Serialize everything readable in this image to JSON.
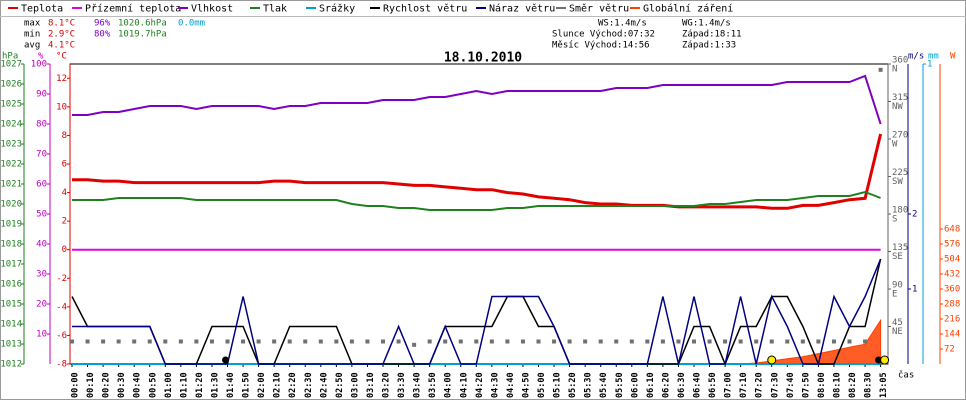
{
  "chart_data": {
    "type": "line",
    "title": "18.10.2010",
    "xlabel": "čas",
    "categories": [
      "00:00",
      "00:10",
      "00:20",
      "00:30",
      "00:40",
      "00:50",
      "01:00",
      "01:10",
      "01:20",
      "01:30",
      "01:40",
      "01:50",
      "02:00",
      "02:10",
      "02:20",
      "02:30",
      "02:40",
      "02:50",
      "03:00",
      "03:10",
      "03:20",
      "03:30",
      "03:40",
      "03:50",
      "04:00",
      "04:10",
      "04:20",
      "04:30",
      "04:40",
      "04:50",
      "05:00",
      "05:10",
      "05:20",
      "05:30",
      "05:40",
      "05:50",
      "06:00",
      "06:10",
      "06:20",
      "06:30",
      "06:40",
      "06:50",
      "07:00",
      "07:10",
      "07:20",
      "07:30",
      "07:40",
      "07:50",
      "08:00",
      "08:10",
      "08:20",
      "08:30",
      "13:05"
    ],
    "series": [
      {
        "name": "Teplota",
        "color": "#e00000",
        "type": "line",
        "axis": "y3",
        "values": [
          4.9,
          4.9,
          4.8,
          4.8,
          4.7,
          4.7,
          4.7,
          4.7,
          4.7,
          4.7,
          4.7,
          4.7,
          4.7,
          4.8,
          4.8,
          4.7,
          4.7,
          4.7,
          4.7,
          4.7,
          4.7,
          4.6,
          4.5,
          4.5,
          4.4,
          4.3,
          4.2,
          4.2,
          4.0,
          3.9,
          3.7,
          3.6,
          3.5,
          3.3,
          3.2,
          3.2,
          3.1,
          3.1,
          3.1,
          3.0,
          3.0,
          3.0,
          3.0,
          3.0,
          3.0,
          2.9,
          2.9,
          3.1,
          3.1,
          3.3,
          3.5,
          3.6,
          8.1
        ]
      },
      {
        "name": "Přízemní teplota",
        "color": "#e000e0",
        "type": "line",
        "axis": "y3",
        "values": [
          0,
          0,
          0,
          0,
          0,
          0,
          0,
          0,
          0,
          0,
          0,
          0,
          0,
          0,
          0,
          0,
          0,
          0,
          0,
          0,
          0,
          0,
          0,
          0,
          0,
          0,
          0,
          0,
          0,
          0,
          0,
          0,
          0,
          0,
          0,
          0,
          0,
          0,
          0,
          0,
          0,
          0,
          0,
          0,
          0,
          0,
          0,
          0,
          0,
          0,
          0,
          0,
          0
        ]
      },
      {
        "name": "Vlhkost",
        "color": "#8000c0",
        "type": "line",
        "axis": "y2",
        "values": [
          83,
          83,
          84,
          84,
          85,
          86,
          86,
          86,
          85,
          86,
          86,
          86,
          86,
          85,
          86,
          86,
          87,
          87,
          87,
          87,
          88,
          88,
          88,
          89,
          89,
          90,
          91,
          90,
          91,
          91,
          91,
          91,
          91,
          91,
          91,
          92,
          92,
          92,
          93,
          93,
          93,
          93,
          93,
          93,
          93,
          93,
          94,
          94,
          94,
          94,
          94,
          96,
          80
        ]
      },
      {
        "name": "Tlak",
        "color": "#208020",
        "type": "line",
        "axis": "y",
        "values": [
          1020.2,
          1020.2,
          1020.2,
          1020.3,
          1020.3,
          1020.3,
          1020.3,
          1020.3,
          1020.2,
          1020.2,
          1020.2,
          1020.2,
          1020.2,
          1020.2,
          1020.2,
          1020.2,
          1020.2,
          1020.2,
          1020.0,
          1019.9,
          1019.9,
          1019.8,
          1019.8,
          1019.7,
          1019.7,
          1019.7,
          1019.7,
          1019.7,
          1019.8,
          1019.8,
          1019.9,
          1019.9,
          1019.9,
          1019.9,
          1019.9,
          1019.9,
          1019.9,
          1019.9,
          1019.9,
          1019.9,
          1019.9,
          1020.0,
          1020.0,
          1020.1,
          1020.2,
          1020.2,
          1020.2,
          1020.3,
          1020.4,
          1020.4,
          1020.4,
          1020.6,
          1020.3
        ]
      },
      {
        "name": "Srážky",
        "color": "#00a0d0",
        "type": "line",
        "axis": "y6",
        "values": [
          0,
          0,
          0,
          0,
          0,
          0,
          0,
          0,
          0,
          0,
          0,
          0,
          0,
          0,
          0,
          0,
          0,
          0,
          0,
          0,
          0,
          0,
          0,
          0,
          0,
          0,
          0,
          0,
          0,
          0,
          0,
          0,
          0,
          0,
          0,
          0,
          0,
          0,
          0,
          0,
          0,
          0,
          0,
          0,
          0,
          0,
          0,
          0,
          0,
          0,
          0,
          0,
          0
        ]
      },
      {
        "name": "Rychlost větru",
        "color": "#000000",
        "type": "line",
        "axis": "y5",
        "values": [
          0.9,
          0.5,
          0.5,
          0.5,
          0.5,
          0.5,
          0,
          0,
          0,
          0.5,
          0.5,
          0.5,
          0,
          0,
          0.5,
          0.5,
          0.5,
          0.5,
          0,
          0,
          0,
          0,
          0,
          0,
          0.5,
          0.5,
          0.5,
          0.5,
          0.9,
          0.9,
          0.5,
          0.5,
          0,
          0,
          0,
          0,
          0,
          0,
          0,
          0,
          0.5,
          0.5,
          0,
          0.5,
          0.5,
          0.9,
          0.9,
          0.5,
          0,
          0,
          0.5,
          0.5,
          1.4
        ]
      },
      {
        "name": "Náraz větru",
        "color": "#000080",
        "type": "line",
        "axis": "y5",
        "values": [
          0.5,
          0.5,
          0.5,
          0.5,
          0.5,
          0.5,
          0,
          0,
          0,
          0,
          0,
          0.9,
          0,
          0,
          0,
          0,
          0,
          0,
          0,
          0,
          0,
          0.5,
          0,
          0,
          0.5,
          0,
          0,
          0.9,
          0.9,
          0.9,
          0.9,
          0.5,
          0,
          0,
          0,
          0,
          0,
          0,
          0.9,
          0,
          0.9,
          0,
          0,
          0.9,
          0,
          0.9,
          0.5,
          0,
          0,
          0.9,
          0.5,
          0.9,
          1.4
        ]
      },
      {
        "name": "Směr větru",
        "color": "#707070",
        "type": "scatter",
        "axis": "y4",
        "values": [
          27,
          27,
          27,
          27,
          27,
          27,
          27,
          27,
          27,
          27,
          27,
          27,
          27,
          27,
          27,
          27,
          27,
          27,
          27,
          27,
          27,
          27,
          23,
          27,
          27,
          27,
          27,
          27,
          27,
          27,
          27,
          27,
          27,
          27,
          27,
          27,
          27,
          27,
          27,
          27,
          27,
          27,
          27,
          27,
          27,
          27,
          27,
          27,
          27,
          27,
          27,
          27,
          353
        ]
      },
      {
        "name": "Globální záření",
        "color": "#ff4000",
        "type": "area",
        "axis": "y7",
        "values": [
          0,
          0,
          0,
          0,
          0,
          0,
          0,
          0,
          0,
          0,
          0,
          0,
          0,
          0,
          0,
          0,
          0,
          0,
          0,
          0,
          0,
          0,
          0,
          0,
          0,
          0,
          0,
          0,
          0,
          0,
          0,
          0,
          0,
          0,
          0,
          0,
          0,
          0,
          0,
          0,
          0,
          0,
          0,
          0,
          5,
          15,
          25,
          35,
          50,
          65,
          80,
          95,
          210
        ]
      }
    ],
    "ylabel": "hPa",
    "ycolor": "#208020",
    "ylim": [
      1012,
      1027
    ],
    "yticks": [
      1012,
      1013,
      1014,
      1015,
      1016,
      1017,
      1018,
      1019,
      1020,
      1021,
      1022,
      1023,
      1024,
      1025,
      1026,
      1027
    ],
    "y2label": "%",
    "y2color": "#c000c0",
    "y2lim": [
      0,
      100
    ],
    "y2ticks": [
      10,
      20,
      30,
      40,
      50,
      60,
      70,
      80,
      90,
      100
    ],
    "y3label": "°C",
    "y3color": "#e00000",
    "y3lim": [
      -8,
      13
    ],
    "y3ticks": [
      -8,
      -6,
      -4,
      -2,
      0,
      2,
      4,
      6,
      8,
      10,
      12
    ],
    "y4color": "#606060",
    "y4lim": [
      0,
      360
    ],
    "y4ticks": [
      45,
      90,
      135,
      180,
      225,
      270,
      315,
      360
    ],
    "y4compass": [
      "NE",
      "E",
      "SE",
      "S",
      "SW",
      "W",
      "NW",
      "N"
    ],
    "y5label": "m/s",
    "y5color": "#000080",
    "y5lim": [
      0,
      4
    ],
    "y5ticks": [
      1,
      2
    ],
    "y6label": "mm",
    "y6color": "#00a0d0",
    "y6lim": [
      0,
      1
    ],
    "y6ticks": [
      1
    ],
    "y7label": "W",
    "y7color": "#ff4000",
    "y7lim": [
      0,
      1440
    ],
    "y7ticks": [
      72,
      144,
      216,
      288,
      360,
      432,
      504,
      576,
      648
    ],
    "stats": [
      [
        "max",
        "8.1°C",
        "96%",
        "1020.6hPa",
        "0.0mm"
      ],
      [
        "min",
        "2.9°C",
        "80%",
        "1019.7hPa"
      ],
      [
        "avg",
        "4.1°C"
      ]
    ],
    "info": [
      "WS:1.4m/s",
      "WG:1.4m/s",
      "Slunce Východ:07:32",
      "Západ:18:11",
      "Měsíc Východ:14:56",
      "Západ:1:33"
    ]
  }
}
